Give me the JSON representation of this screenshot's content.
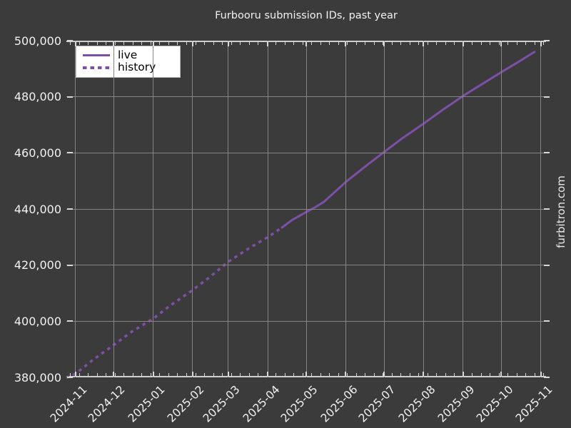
{
  "chart_data": {
    "type": "line",
    "title": "Furbooru submission IDs, past year",
    "watermark": "furbitron.com",
    "colors": {
      "line": "#7d4fa8",
      "background": "#3b3b3b",
      "grid": "#848484",
      "axis": "#cfcfcf",
      "text": "#f2f2f2",
      "legend_bg": "#ffffff",
      "legend_text": "#000000"
    },
    "x_axis": {
      "ticks": [
        "2024-11",
        "2024-12",
        "2025-01",
        "2025-02",
        "2025-03",
        "2025-04",
        "2025-05",
        "2025-06",
        "2025-07",
        "2025-08",
        "2025-09",
        "2025-10",
        "2025-11"
      ],
      "range": [
        "2024-10-25",
        "2025-11-05"
      ],
      "minor_tick_interval_days": 7
    },
    "y_axis": {
      "ticks": [
        {
          "value": 500000,
          "label": "500,000"
        },
        {
          "value": 480000,
          "label": "480,000"
        },
        {
          "value": 460000,
          "label": "460,000"
        },
        {
          "value": 440000,
          "label": "440,000"
        },
        {
          "value": 420000,
          "label": "420,000"
        },
        {
          "value": 400000,
          "label": "400,000"
        },
        {
          "value": 380000,
          "label": "380,000"
        }
      ],
      "ylim": [
        380000,
        500000
      ]
    },
    "legend": [
      {
        "label": "live",
        "style": "solid"
      },
      {
        "label": "history",
        "style": "dashed"
      }
    ],
    "series": [
      {
        "name": "history",
        "style": "dashed",
        "points": [
          [
            "2024-10-25",
            379900
          ],
          [
            "2024-11-01",
            381200
          ],
          [
            "2024-11-15",
            386300
          ],
          [
            "2024-12-01",
            391500
          ],
          [
            "2024-12-15",
            396200
          ],
          [
            "2025-01-01",
            400900
          ],
          [
            "2025-01-15",
            405800
          ],
          [
            "2025-02-01",
            411100
          ],
          [
            "2025-02-15",
            416000
          ],
          [
            "2025-03-01",
            421200
          ],
          [
            "2025-03-15",
            425400
          ],
          [
            "2025-04-01",
            430000
          ],
          [
            "2025-04-12",
            433400
          ]
        ]
      },
      {
        "name": "live",
        "style": "solid",
        "points": [
          [
            "2025-04-12",
            433400
          ],
          [
            "2025-04-20",
            436100
          ],
          [
            "2025-05-01",
            438900
          ],
          [
            "2025-05-08",
            440600
          ],
          [
            "2025-05-15",
            442600
          ],
          [
            "2025-06-01",
            449600
          ],
          [
            "2025-06-15",
            454700
          ],
          [
            "2025-07-01",
            460300
          ],
          [
            "2025-07-15",
            465100
          ],
          [
            "2025-08-01",
            470400
          ],
          [
            "2025-08-15",
            475000
          ],
          [
            "2025-09-01",
            480300
          ],
          [
            "2025-09-15",
            484300
          ],
          [
            "2025-10-01",
            488800
          ],
          [
            "2025-10-15",
            492600
          ],
          [
            "2025-10-27",
            496000
          ]
        ]
      }
    ],
    "grid": true,
    "legend_position": "upper left"
  }
}
